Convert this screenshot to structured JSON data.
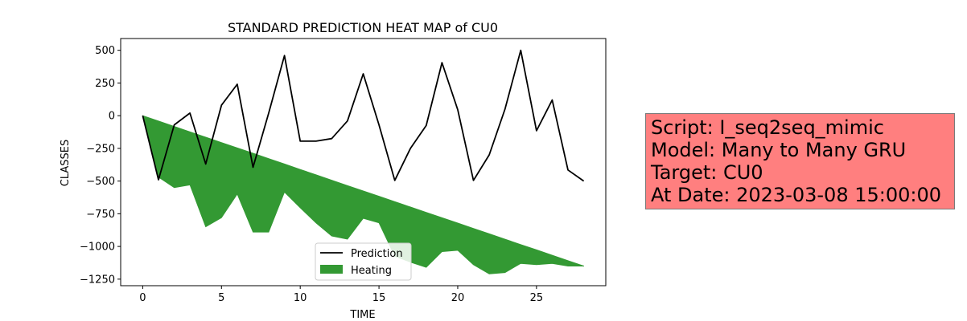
{
  "chart_data": {
    "type": "line",
    "title": "STANDARD PREDICTION HEAT MAP of CU0",
    "xlabel": "TIME",
    "ylabel": "CLASSES",
    "xlim": [
      -1.4,
      29.4
    ],
    "ylim": [
      -1300,
      590
    ],
    "xticks": [
      0,
      5,
      10,
      15,
      20,
      25
    ],
    "yticks": [
      500,
      250,
      0,
      -250,
      -500,
      -750,
      -1000,
      -1250
    ],
    "ytick_labels": [
      "500",
      "250",
      "0",
      "−250",
      "−500",
      "−750",
      "−1000",
      "−1250"
    ],
    "x": [
      0,
      1,
      2,
      3,
      4,
      5,
      6,
      7,
      8,
      9,
      10,
      11,
      12,
      13,
      14,
      15,
      16,
      17,
      18,
      19,
      20,
      21,
      22,
      23,
      24,
      25,
      26,
      27,
      28
    ],
    "series": [
      {
        "name": "Prediction",
        "kind": "line",
        "color": "#000000",
        "values": [
          0,
          -490,
          -70,
          20,
          -370,
          80,
          240,
          -395,
          20,
          460,
          -195,
          -195,
          -175,
          -40,
          320,
          -70,
          -495,
          -250,
          -75,
          405,
          45,
          -495,
          -300,
          50,
          500,
          -115,
          120,
          -415,
          -500
        ]
      },
      {
        "name": "Heating",
        "kind": "area",
        "color": "#339933",
        "upper": [
          0,
          -41,
          -82,
          -123,
          -164,
          -205,
          -246,
          -287,
          -328,
          -369,
          -411,
          -452,
          -493,
          -534,
          -575,
          -616,
          -657,
          -698,
          -739,
          -780,
          -821,
          -862,
          -903,
          -944,
          -985,
          -1026,
          -1067,
          -1108,
          -1149
        ],
        "lower": [
          0,
          -470,
          -550,
          -530,
          -850,
          -780,
          -600,
          -890,
          -890,
          -585,
          -705,
          -820,
          -920,
          -945,
          -785,
          -820,
          -1075,
          -1120,
          -1160,
          -1040,
          -1030,
          -1140,
          -1210,
          -1200,
          -1130,
          -1140,
          -1130,
          -1150,
          -1150
        ]
      }
    ],
    "legend": {
      "position": "lower center",
      "entries": [
        "Prediction",
        "Heating"
      ]
    }
  },
  "info_box": {
    "lines": [
      "Script: I_seq2seq_mimic",
      "Model: Many to Many GRU",
      "Target: CU0",
      "At Date: 2023-03-08 15:00:00"
    ],
    "background": "#ff7f7f"
  }
}
